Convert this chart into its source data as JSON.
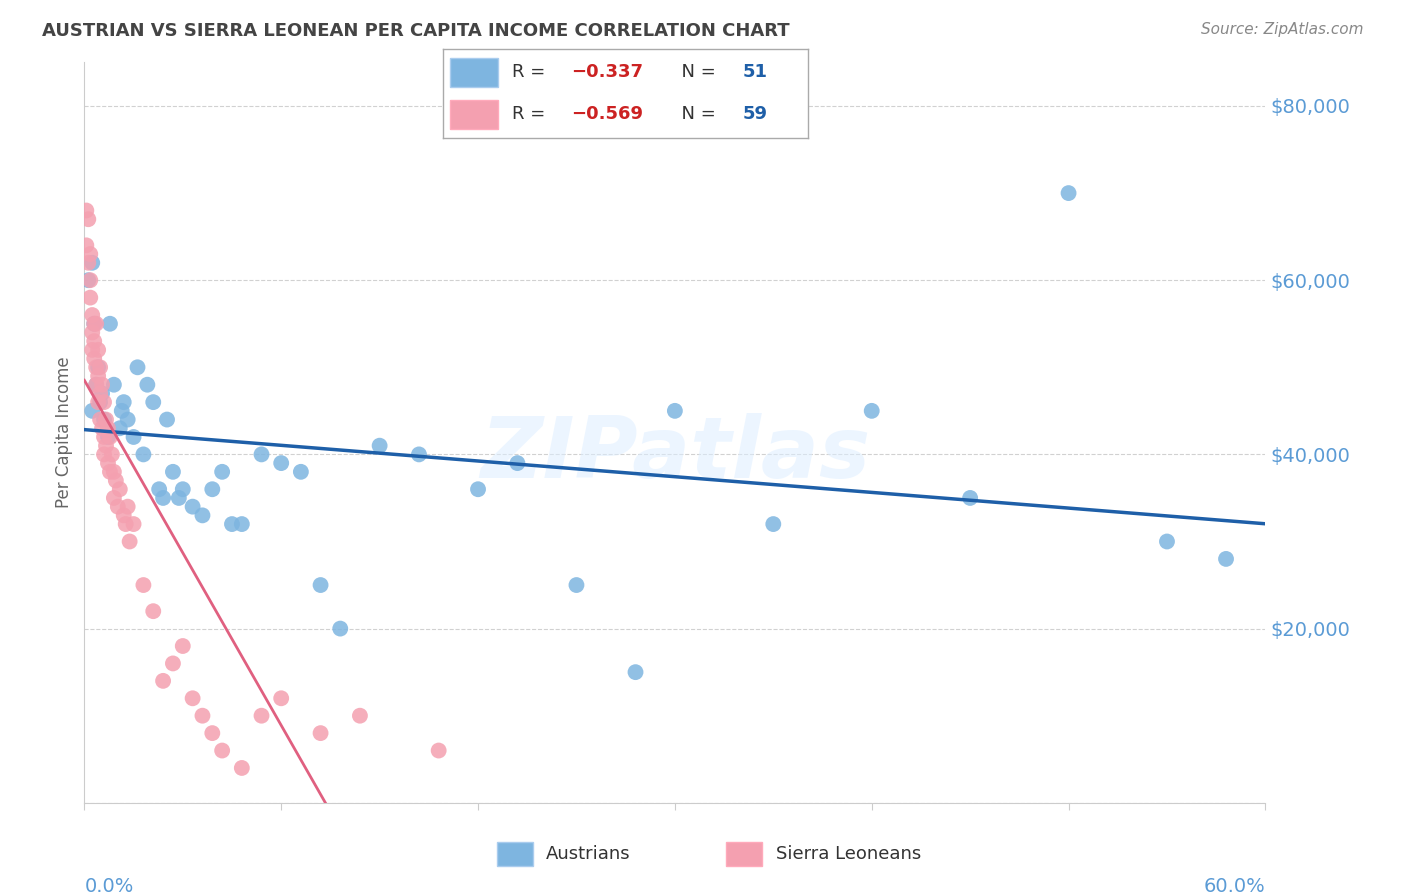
{
  "title": "AUSTRIAN VS SIERRA LEONEAN PER CAPITA INCOME CORRELATION CHART",
  "source": "Source: ZipAtlas.com",
  "ylabel": "Per Capita Income",
  "ytick_labels": [
    "",
    "$20,000",
    "$40,000",
    "$60,000",
    "$80,000"
  ],
  "ytick_vals": [
    0,
    20000,
    40000,
    60000,
    80000
  ],
  "blue_color": "#7EB5E0",
  "pink_color": "#F4A0B0",
  "blue_line_color": "#1E5FA8",
  "pink_line_color": "#E06080",
  "pink_line_dash_color": "#E0A0B0",
  "axis_label_color": "#5B9BD5",
  "watermark": "ZIPatlas",
  "blue_dots_x": [
    0.002,
    0.004,
    0.004,
    0.005,
    0.006,
    0.007,
    0.008,
    0.009,
    0.01,
    0.012,
    0.013,
    0.015,
    0.018,
    0.019,
    0.02,
    0.022,
    0.025,
    0.027,
    0.03,
    0.032,
    0.035,
    0.038,
    0.04,
    0.042,
    0.045,
    0.048,
    0.05,
    0.055,
    0.06,
    0.065,
    0.07,
    0.075,
    0.08,
    0.09,
    0.1,
    0.11,
    0.12,
    0.13,
    0.15,
    0.17,
    0.2,
    0.22,
    0.25,
    0.28,
    0.3,
    0.35,
    0.4,
    0.45,
    0.5,
    0.55,
    0.58
  ],
  "blue_dots_y": [
    60000,
    62000,
    45000,
    55000,
    48000,
    50000,
    46000,
    47000,
    44000,
    42000,
    55000,
    48000,
    43000,
    45000,
    46000,
    44000,
    42000,
    50000,
    40000,
    48000,
    46000,
    36000,
    35000,
    44000,
    38000,
    35000,
    36000,
    34000,
    33000,
    36000,
    38000,
    32000,
    32000,
    40000,
    39000,
    38000,
    25000,
    20000,
    41000,
    40000,
    36000,
    39000,
    25000,
    15000,
    45000,
    32000,
    45000,
    35000,
    70000,
    30000,
    28000
  ],
  "pink_dots_x": [
    0.001,
    0.001,
    0.002,
    0.002,
    0.003,
    0.003,
    0.003,
    0.004,
    0.004,
    0.004,
    0.005,
    0.005,
    0.005,
    0.006,
    0.006,
    0.006,
    0.007,
    0.007,
    0.007,
    0.008,
    0.008,
    0.008,
    0.009,
    0.009,
    0.01,
    0.01,
    0.01,
    0.011,
    0.011,
    0.012,
    0.012,
    0.013,
    0.013,
    0.014,
    0.015,
    0.015,
    0.016,
    0.017,
    0.018,
    0.02,
    0.021,
    0.022,
    0.023,
    0.025,
    0.03,
    0.035,
    0.04,
    0.045,
    0.05,
    0.055,
    0.06,
    0.065,
    0.07,
    0.08,
    0.09,
    0.1,
    0.12,
    0.14,
    0.18
  ],
  "pink_dots_y": [
    68000,
    64000,
    67000,
    62000,
    63000,
    60000,
    58000,
    56000,
    54000,
    52000,
    55000,
    53000,
    51000,
    55000,
    50000,
    48000,
    52000,
    49000,
    46000,
    50000,
    47000,
    44000,
    48000,
    43000,
    46000,
    42000,
    40000,
    44000,
    41000,
    43000,
    39000,
    42000,
    38000,
    40000,
    38000,
    35000,
    37000,
    34000,
    36000,
    33000,
    32000,
    34000,
    30000,
    32000,
    25000,
    22000,
    14000,
    16000,
    18000,
    12000,
    10000,
    8000,
    6000,
    4000,
    10000,
    12000,
    8000,
    10000,
    6000
  ]
}
